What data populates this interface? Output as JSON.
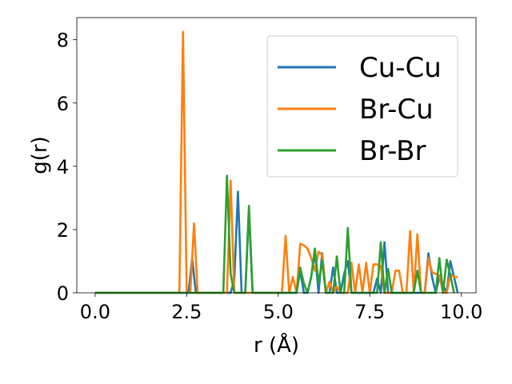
{
  "chart_data": {
    "type": "line",
    "title": "",
    "xlabel": "r (Å)",
    "ylabel": "g(r)",
    "xlim": [
      -0.5,
      10.4
    ],
    "ylim": [
      0,
      8.7
    ],
    "xticks": [
      0.0,
      2.5,
      5.0,
      7.5,
      10.0
    ],
    "xtick_labels": [
      "0.0",
      "2.5",
      "5.0",
      "7.5",
      "10.0"
    ],
    "yticks": [
      0,
      2,
      4,
      6,
      8
    ],
    "ytick_labels": [
      "0",
      "2",
      "4",
      "6",
      "8"
    ],
    "grid": false,
    "legend_position": "upper right",
    "series": [
      {
        "name": "Cu-Cu",
        "color": "#1f77b4",
        "x": [
          0,
          2.55,
          2.65,
          2.75,
          3.7,
          3.8,
          3.9,
          4.0,
          4.1,
          4.2,
          4.3,
          5.5,
          5.6,
          5.7,
          5.8,
          5.9,
          6.0,
          6.1,
          6.2,
          6.3,
          6.4,
          6.5,
          6.6,
          6.7,
          6.8,
          6.9,
          7.0,
          7.6,
          7.7,
          7.8,
          7.9,
          8.0,
          8.1,
          9.0,
          9.1,
          9.2,
          9.3,
          9.4,
          9.6,
          9.7,
          9.9
        ],
        "y": [
          0,
          0,
          1.1,
          0,
          0,
          0.4,
          3.2,
          0,
          0,
          2.6,
          0,
          0,
          0.7,
          0,
          0,
          0.5,
          1.3,
          0,
          1.25,
          0,
          0,
          0.8,
          0,
          0,
          0.6,
          1.0,
          0,
          0,
          0.45,
          0,
          1.6,
          0,
          0,
          0,
          1.25,
          0.5,
          0,
          0.5,
          0,
          1.0,
          0
        ]
      },
      {
        "name": "Br-Cu",
        "color": "#ff7f0e",
        "x": [
          0,
          2.3,
          2.4,
          2.5,
          2.6,
          2.7,
          2.8,
          3.6,
          3.7,
          3.8,
          5.1,
          5.2,
          5.3,
          5.4,
          5.5,
          5.6,
          5.7,
          5.8,
          5.9,
          6.0,
          6.1,
          6.2,
          6.3,
          6.4,
          6.5,
          6.6,
          6.7,
          6.8,
          6.9,
          7.0,
          7.1,
          7.2,
          7.3,
          7.4,
          7.5,
          7.6,
          7.7,
          7.8,
          7.9,
          8.0,
          8.1,
          8.2,
          8.3,
          8.4,
          8.5,
          8.6,
          8.7,
          8.8,
          8.9,
          9.0,
          9.1,
          9.2,
          9.3,
          9.4,
          9.5,
          9.6,
          9.7,
          9.8,
          9.9
        ],
        "y": [
          0,
          0,
          8.25,
          0,
          0,
          2.2,
          0,
          0,
          3.55,
          0,
          0,
          1.8,
          0,
          0.5,
          0,
          1.55,
          1.5,
          1.4,
          1.1,
          0.7,
          1.3,
          1.2,
          0,
          0.35,
          0,
          0.2,
          0,
          0,
          0,
          0.95,
          0,
          0.9,
          0,
          0.95,
          0,
          0.9,
          0.9,
          0.85,
          0,
          0,
          0,
          0.7,
          0.7,
          0,
          0,
          1.95,
          0,
          1.85,
          0,
          0,
          1.1,
          0.65,
          0.6,
          0.55,
          0,
          0,
          0.6,
          0.5,
          0.5
        ]
      },
      {
        "name": "Br-Br",
        "color": "#2ca02c",
        "x": [
          0,
          3.5,
          3.6,
          3.7,
          3.8,
          4.1,
          4.2,
          4.3,
          5.5,
          5.6,
          5.7,
          5.8,
          5.9,
          6.0,
          6.1,
          6.2,
          6.3,
          6.4,
          6.5,
          6.6,
          6.7,
          6.8,
          6.9,
          7.0,
          7.7,
          7.8,
          7.9,
          8.0,
          8.1,
          8.2,
          8.7,
          8.8,
          8.9,
          9.3,
          9.4,
          9.5,
          9.6,
          9.7,
          9.8
        ],
        "y": [
          0,
          0,
          3.7,
          0.6,
          0,
          0,
          2.75,
          0,
          0,
          0.8,
          0.3,
          0,
          0.5,
          1.4,
          0.3,
          1.0,
          0,
          0,
          0,
          1.15,
          0,
          0,
          2.05,
          0,
          0,
          1.6,
          0,
          0.75,
          0,
          0,
          0,
          0.7,
          0,
          0,
          1.1,
          0,
          1.05,
          0.55,
          0
        ]
      }
    ]
  }
}
